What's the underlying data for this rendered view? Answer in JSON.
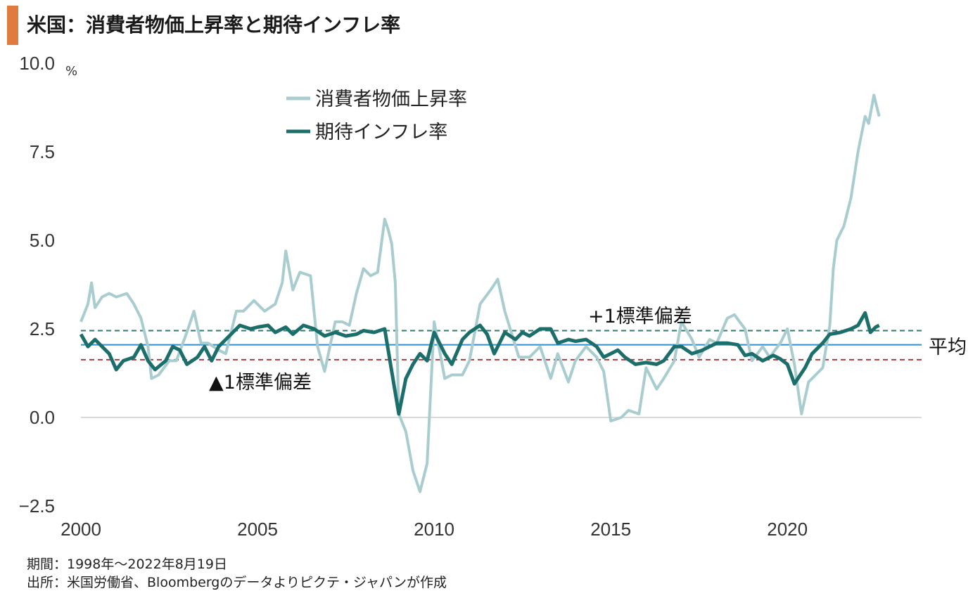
{
  "title": "米国：消費者物価上昇率と期待インフレ率",
  "colors": {
    "title_bar": "#E07A3F",
    "cpi": "#A9CDCF",
    "expected": "#1B6E6A",
    "mean_line": "#2F8FD0",
    "upper_sd": "#2E7A6E",
    "lower_sd": "#B03A3A",
    "negative_tick": "#D23B2B",
    "grid": "#D9D9D9"
  },
  "notes": {
    "period": "期間：1998年～2022年8月19日",
    "source": "出所：米国労働省、Bloombergのデータよりピクテ・ジャパンが作成"
  },
  "chart_data": {
    "type": "line",
    "title": "米国：消費者物価上昇率と期待インフレ率",
    "unit_label": "%",
    "ylim": [
      -2.5,
      10.0
    ],
    "xlim": [
      2000,
      2023.8
    ],
    "y_ticks": [
      "10.0",
      "7.5",
      "5.0",
      "2.5",
      "0.0",
      "−2.5"
    ],
    "x_ticks": [
      "2000",
      "2005",
      "2010",
      "2015",
      "2020"
    ],
    "legend_position": "top-left",
    "reference_lines": [
      {
        "name": "+1標準偏差",
        "value": 2.45,
        "style": "dashed"
      },
      {
        "name": "平均",
        "value": 2.05,
        "style": "solid"
      },
      {
        "name": "▲1標準偏差",
        "value": 1.63,
        "style": "dashed"
      }
    ],
    "series": [
      {
        "name": "消費者物価上昇率",
        "points": [
          [
            2000.0,
            2.7
          ],
          [
            2000.2,
            3.2
          ],
          [
            2000.3,
            3.8
          ],
          [
            2000.4,
            3.1
          ],
          [
            2000.6,
            3.4
          ],
          [
            2000.8,
            3.5
          ],
          [
            2001.0,
            3.4
          ],
          [
            2001.3,
            3.5
          ],
          [
            2001.5,
            3.2
          ],
          [
            2001.7,
            2.8
          ],
          [
            2001.9,
            2.0
          ],
          [
            2002.0,
            1.1
          ],
          [
            2002.2,
            1.2
          ],
          [
            2002.5,
            1.6
          ],
          [
            2002.7,
            1.6
          ],
          [
            2003.0,
            2.4
          ],
          [
            2003.2,
            3.0
          ],
          [
            2003.4,
            2.1
          ],
          [
            2003.6,
            2.1
          ],
          [
            2003.9,
            1.9
          ],
          [
            2004.1,
            1.8
          ],
          [
            2004.4,
            3.0
          ],
          [
            2004.6,
            3.0
          ],
          [
            2004.9,
            3.3
          ],
          [
            2005.2,
            3.0
          ],
          [
            2005.5,
            3.2
          ],
          [
            2005.7,
            3.8
          ],
          [
            2005.8,
            4.7
          ],
          [
            2006.0,
            3.6
          ],
          [
            2006.2,
            4.1
          ],
          [
            2006.5,
            4.0
          ],
          [
            2006.7,
            2.0
          ],
          [
            2006.9,
            1.3
          ],
          [
            2007.2,
            2.7
          ],
          [
            2007.4,
            2.7
          ],
          [
            2007.6,
            2.6
          ],
          [
            2007.8,
            3.5
          ],
          [
            2008.0,
            4.2
          ],
          [
            2008.2,
            4.0
          ],
          [
            2008.4,
            4.1
          ],
          [
            2008.6,
            5.6
          ],
          [
            2008.7,
            5.3
          ],
          [
            2008.8,
            4.9
          ],
          [
            2008.9,
            3.8
          ],
          [
            2009.0,
            0.1
          ],
          [
            2009.2,
            -0.4
          ],
          [
            2009.4,
            -1.5
          ],
          [
            2009.6,
            -2.1
          ],
          [
            2009.8,
            -1.3
          ],
          [
            2010.0,
            2.7
          ],
          [
            2010.3,
            1.1
          ],
          [
            2010.5,
            1.2
          ],
          [
            2010.8,
            1.2
          ],
          [
            2011.0,
            1.6
          ],
          [
            2011.3,
            3.2
          ],
          [
            2011.6,
            3.6
          ],
          [
            2011.8,
            3.9
          ],
          [
            2012.0,
            3.0
          ],
          [
            2012.4,
            1.7
          ],
          [
            2012.7,
            1.7
          ],
          [
            2013.0,
            2.0
          ],
          [
            2013.3,
            1.1
          ],
          [
            2013.5,
            1.8
          ],
          [
            2013.8,
            1.0
          ],
          [
            2014.0,
            1.6
          ],
          [
            2014.3,
            2.0
          ],
          [
            2014.6,
            1.7
          ],
          [
            2014.8,
            1.3
          ],
          [
            2015.0,
            -0.1
          ],
          [
            2015.3,
            0.0
          ],
          [
            2015.5,
            0.2
          ],
          [
            2015.8,
            0.1
          ],
          [
            2016.0,
            1.4
          ],
          [
            2016.3,
            0.8
          ],
          [
            2016.5,
            1.1
          ],
          [
            2016.8,
            1.6
          ],
          [
            2017.0,
            2.7
          ],
          [
            2017.3,
            2.2
          ],
          [
            2017.5,
            1.7
          ],
          [
            2017.8,
            2.2
          ],
          [
            2018.0,
            2.1
          ],
          [
            2018.3,
            2.8
          ],
          [
            2018.5,
            2.9
          ],
          [
            2018.8,
            2.5
          ],
          [
            2019.0,
            1.6
          ],
          [
            2019.3,
            2.0
          ],
          [
            2019.5,
            1.7
          ],
          [
            2019.8,
            2.1
          ],
          [
            2020.0,
            2.5
          ],
          [
            2020.2,
            1.5
          ],
          [
            2020.4,
            0.1
          ],
          [
            2020.6,
            1.0
          ],
          [
            2020.8,
            1.2
          ],
          [
            2021.0,
            1.4
          ],
          [
            2021.2,
            2.6
          ],
          [
            2021.3,
            4.2
          ],
          [
            2021.4,
            5.0
          ],
          [
            2021.6,
            5.4
          ],
          [
            2021.8,
            6.2
          ],
          [
            2022.0,
            7.5
          ],
          [
            2022.2,
            8.5
          ],
          [
            2022.3,
            8.3
          ],
          [
            2022.45,
            9.1
          ],
          [
            2022.6,
            8.5
          ]
        ]
      },
      {
        "name": "期待インフレ率",
        "points": [
          [
            2000.0,
            2.35
          ],
          [
            2000.2,
            2.0
          ],
          [
            2000.4,
            2.2
          ],
          [
            2000.6,
            2.0
          ],
          [
            2000.8,
            1.8
          ],
          [
            2001.0,
            1.35
          ],
          [
            2001.2,
            1.6
          ],
          [
            2001.5,
            1.7
          ],
          [
            2001.7,
            2.05
          ],
          [
            2001.9,
            1.6
          ],
          [
            2002.1,
            1.35
          ],
          [
            2002.4,
            1.6
          ],
          [
            2002.6,
            2.0
          ],
          [
            2002.8,
            1.9
          ],
          [
            2003.0,
            1.5
          ],
          [
            2003.3,
            1.7
          ],
          [
            2003.5,
            2.0
          ],
          [
            2003.7,
            1.6
          ],
          [
            2003.9,
            2.0
          ],
          [
            2004.2,
            2.3
          ],
          [
            2004.5,
            2.6
          ],
          [
            2004.8,
            2.5
          ],
          [
            2005.0,
            2.55
          ],
          [
            2005.3,
            2.6
          ],
          [
            2005.5,
            2.4
          ],
          [
            2005.8,
            2.55
          ],
          [
            2006.0,
            2.35
          ],
          [
            2006.3,
            2.6
          ],
          [
            2006.6,
            2.5
          ],
          [
            2006.9,
            2.3
          ],
          [
            2007.2,
            2.4
          ],
          [
            2007.5,
            2.3
          ],
          [
            2007.8,
            2.35
          ],
          [
            2008.0,
            2.45
          ],
          [
            2008.3,
            2.4
          ],
          [
            2008.6,
            2.5
          ],
          [
            2008.8,
            1.3
          ],
          [
            2009.0,
            0.1
          ],
          [
            2009.2,
            1.1
          ],
          [
            2009.4,
            1.5
          ],
          [
            2009.6,
            1.8
          ],
          [
            2009.8,
            1.6
          ],
          [
            2010.0,
            2.4
          ],
          [
            2010.3,
            1.8
          ],
          [
            2010.5,
            1.5
          ],
          [
            2010.8,
            2.2
          ],
          [
            2011.0,
            2.4
          ],
          [
            2011.3,
            2.6
          ],
          [
            2011.5,
            2.35
          ],
          [
            2011.7,
            1.8
          ],
          [
            2012.0,
            2.4
          ],
          [
            2012.3,
            2.2
          ],
          [
            2012.5,
            2.4
          ],
          [
            2012.7,
            2.3
          ],
          [
            2013.0,
            2.5
          ],
          [
            2013.3,
            2.5
          ],
          [
            2013.5,
            2.1
          ],
          [
            2013.8,
            2.2
          ],
          [
            2014.0,
            2.15
          ],
          [
            2014.3,
            2.2
          ],
          [
            2014.6,
            2.0
          ],
          [
            2014.8,
            1.7
          ],
          [
            2015.0,
            1.8
          ],
          [
            2015.2,
            1.9
          ],
          [
            2015.4,
            1.7
          ],
          [
            2015.7,
            1.5
          ],
          [
            2016.0,
            1.55
          ],
          [
            2016.3,
            1.5
          ],
          [
            2016.5,
            1.6
          ],
          [
            2016.8,
            2.0
          ],
          [
            2017.0,
            2.0
          ],
          [
            2017.3,
            1.8
          ],
          [
            2017.6,
            1.9
          ],
          [
            2017.8,
            2.0
          ],
          [
            2018.0,
            2.1
          ],
          [
            2018.3,
            2.1
          ],
          [
            2018.6,
            2.05
          ],
          [
            2018.8,
            1.75
          ],
          [
            2019.0,
            1.8
          ],
          [
            2019.3,
            1.6
          ],
          [
            2019.6,
            1.75
          ],
          [
            2019.8,
            1.65
          ],
          [
            2020.0,
            1.5
          ],
          [
            2020.2,
            0.95
          ],
          [
            2020.5,
            1.4
          ],
          [
            2020.7,
            1.8
          ],
          [
            2021.0,
            2.1
          ],
          [
            2021.2,
            2.35
          ],
          [
            2021.5,
            2.4
          ],
          [
            2021.8,
            2.5
          ],
          [
            2022.0,
            2.6
          ],
          [
            2022.2,
            2.95
          ],
          [
            2022.35,
            2.4
          ],
          [
            2022.5,
            2.55
          ],
          [
            2022.6,
            2.6
          ]
        ]
      }
    ]
  }
}
